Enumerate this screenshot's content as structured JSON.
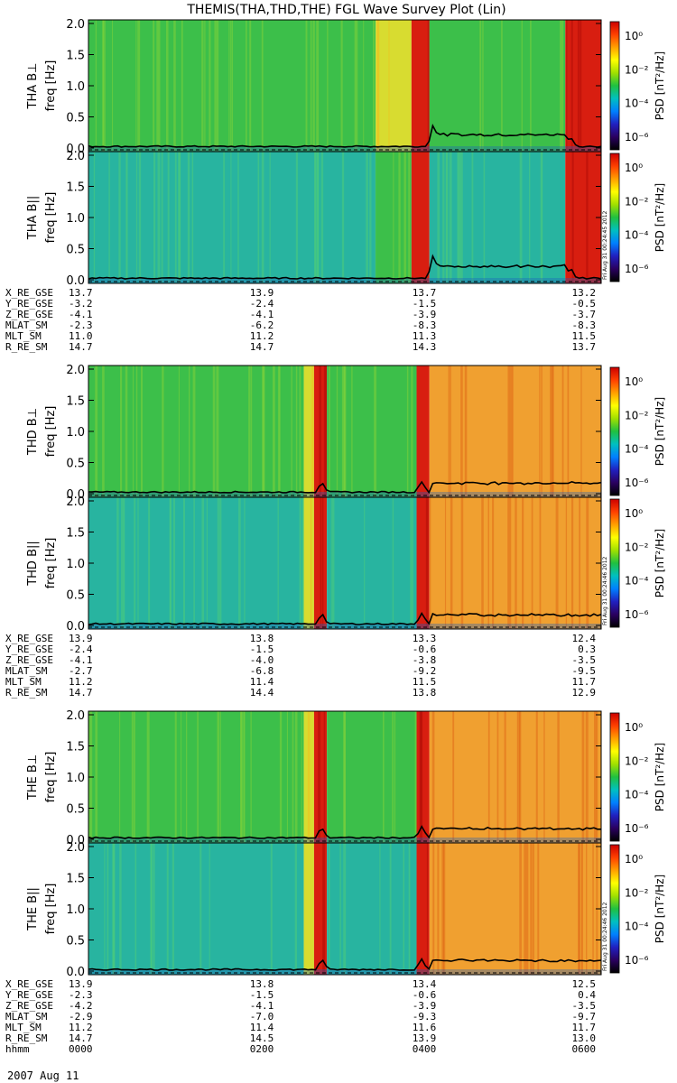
{
  "title": "THEMIS(THA,THD,THE) FGL Wave Survey Plot (Lin)",
  "colorbar": {
    "label": "PSD [nT²/Hz]",
    "ticks": [
      "10⁰",
      "10⁻²",
      "10⁻⁴",
      "10⁻⁶"
    ],
    "colors": [
      "#000000",
      "#2a0060",
      "#2020c0",
      "#0080ff",
      "#00c0c0",
      "#20c040",
      "#a0e000",
      "#ffff00",
      "#ffa000",
      "#ff4000",
      "#cc0000"
    ]
  },
  "chart_data": [
    {
      "type": "heatmap",
      "probe": "THA",
      "panels": [
        {
          "ylabel": "THA B⊥",
          "yunit": "freq [Hz]",
          "ylim": [
            0,
            2.0
          ],
          "yticks": [
            "0.0",
            "0.5",
            "1.0",
            "1.5",
            "2.0"
          ],
          "bands": [
            [
              0.0,
              0.56,
              "green"
            ],
            [
              0.56,
              0.63,
              "yellow"
            ],
            [
              0.63,
              0.665,
              "red"
            ],
            [
              0.665,
              0.93,
              "green"
            ],
            [
              0.93,
              1.0,
              "red"
            ]
          ],
          "peaks": [
            0.67,
            0.94
          ]
        },
        {
          "ylabel": "THA B||",
          "yunit": "freq [Hz]",
          "ylim": [
            0,
            2.0
          ],
          "yticks": [
            "0.0",
            "0.5",
            "1.0",
            "1.5",
            "2.0"
          ],
          "bands": [
            [
              0.0,
              0.56,
              "cyan"
            ],
            [
              0.56,
              0.63,
              "green"
            ],
            [
              0.63,
              0.665,
              "red"
            ],
            [
              0.665,
              0.93,
              "cyan"
            ],
            [
              0.93,
              1.0,
              "red"
            ]
          ],
          "peaks": [
            0.67,
            0.94
          ]
        }
      ],
      "ephemeris": [
        {
          "label": "X_RE_GSE",
          "values": [
            "13.7",
            "13.9",
            "13.7",
            "13.2"
          ]
        },
        {
          "label": "Y_RE_GSE",
          "values": [
            "-3.2",
            "-2.4",
            "-1.5",
            "-0.5"
          ]
        },
        {
          "label": "Z_RE_GSE",
          "values": [
            "-4.1",
            "-4.1",
            "-3.9",
            "-3.7"
          ]
        },
        {
          "label": "MLAT_SM",
          "values": [
            "-2.3",
            "-6.2",
            "-8.3",
            "-8.3"
          ]
        },
        {
          "label": "MLT_SM",
          "values": [
            "11.0",
            "11.2",
            "11.3",
            "11.5"
          ]
        },
        {
          "label": "R_RE_SM",
          "values": [
            "14.7",
            "14.7",
            "14.3",
            "13.7"
          ]
        }
      ],
      "stamp": "Fri Aug 31 00:24:45 2012"
    },
    {
      "type": "heatmap",
      "probe": "THD",
      "panels": [
        {
          "ylabel": "THD B⊥",
          "yunit": "freq [Hz]",
          "ylim": [
            0,
            2.0
          ],
          "yticks": [
            "0.0",
            "0.5",
            "1.0",
            "1.5",
            "2.0"
          ],
          "bands": [
            [
              0.0,
              0.42,
              "green"
            ],
            [
              0.42,
              0.44,
              "yellow"
            ],
            [
              0.44,
              0.465,
              "red"
            ],
            [
              0.465,
              0.64,
              "green"
            ],
            [
              0.64,
              0.665,
              "red"
            ],
            [
              0.665,
              1.0,
              "orange"
            ]
          ],
          "peaks": [
            0.455,
            0.65
          ]
        },
        {
          "ylabel": "THD B||",
          "yunit": "freq [Hz]",
          "ylim": [
            0,
            2.0
          ],
          "yticks": [
            "0.0",
            "0.5",
            "1.0",
            "1.5",
            "2.0"
          ],
          "bands": [
            [
              0.0,
              0.42,
              "cyan"
            ],
            [
              0.42,
              0.44,
              "yellow"
            ],
            [
              0.44,
              0.465,
              "red"
            ],
            [
              0.465,
              0.64,
              "cyan"
            ],
            [
              0.64,
              0.665,
              "red"
            ],
            [
              0.665,
              1.0,
              "orange"
            ]
          ],
          "peaks": [
            0.455,
            0.65
          ]
        }
      ],
      "ephemeris": [
        {
          "label": "X_RE_GSE",
          "values": [
            "13.9",
            "13.8",
            "13.3",
            "12.4"
          ]
        },
        {
          "label": "Y_RE_GSE",
          "values": [
            "-2.4",
            "-1.5",
            "-0.6",
            "0.3"
          ]
        },
        {
          "label": "Z_RE_GSE",
          "values": [
            "-4.1",
            "-4.0",
            "-3.8",
            "-3.5"
          ]
        },
        {
          "label": "MLAT_SM",
          "values": [
            "-2.7",
            "-6.8",
            "-9.2",
            "-9.5"
          ]
        },
        {
          "label": "MLT_SM",
          "values": [
            "11.2",
            "11.4",
            "11.5",
            "11.7"
          ]
        },
        {
          "label": "R_RE_SM",
          "values": [
            "14.7",
            "14.4",
            "13.8",
            "12.9"
          ]
        }
      ],
      "stamp": "Fri Aug 31 00:24:46 2012"
    },
    {
      "type": "heatmap",
      "probe": "THE",
      "panels": [
        {
          "ylabel": "THE B⊥",
          "yunit": "freq [Hz]",
          "ylim": [
            0,
            2.0
          ],
          "yticks": [
            "0.0",
            "0.5",
            "1.0",
            "1.5",
            "2.0"
          ],
          "bands": [
            [
              0.0,
              0.42,
              "green"
            ],
            [
              0.42,
              0.44,
              "yellow"
            ],
            [
              0.44,
              0.465,
              "red"
            ],
            [
              0.465,
              0.64,
              "green"
            ],
            [
              0.64,
              0.665,
              "red"
            ],
            [
              0.665,
              1.0,
              "orange"
            ]
          ],
          "peaks": [
            0.455,
            0.65
          ]
        },
        {
          "ylabel": "THE B||",
          "yunit": "freq [Hz]",
          "ylim": [
            0,
            2.0
          ],
          "yticks": [
            "0.0",
            "0.5",
            "1.0",
            "1.5",
            "2.0"
          ],
          "bands": [
            [
              0.0,
              0.42,
              "cyan"
            ],
            [
              0.42,
              0.44,
              "yellow"
            ],
            [
              0.44,
              0.465,
              "red"
            ],
            [
              0.465,
              0.64,
              "cyan"
            ],
            [
              0.64,
              0.665,
              "red"
            ],
            [
              0.665,
              1.0,
              "orange"
            ]
          ],
          "peaks": [
            0.455,
            0.65
          ]
        }
      ],
      "ephemeris": [
        {
          "label": "X_RE_GSE",
          "values": [
            "13.9",
            "13.8",
            "13.4",
            "12.5"
          ]
        },
        {
          "label": "Y_RE_GSE",
          "values": [
            "-2.3",
            "-1.5",
            "-0.6",
            "0.4"
          ]
        },
        {
          "label": "Z_RE_GSE",
          "values": [
            "-4.2",
            "-4.1",
            "-3.9",
            "-3.5"
          ]
        },
        {
          "label": "MLAT_SM",
          "values": [
            "-2.9",
            "-7.0",
            "-9.3",
            "-9.7"
          ]
        },
        {
          "label": "MLT_SM",
          "values": [
            "11.2",
            "11.4",
            "11.6",
            "11.7"
          ]
        },
        {
          "label": "R_RE_SM",
          "values": [
            "14.7",
            "14.5",
            "13.9",
            "13.0"
          ]
        },
        {
          "label": "hhmm",
          "values": [
            "0000",
            "0200",
            "0400",
            "0600"
          ]
        }
      ],
      "stamp": "Fri Aug 31 00:24:46 2012"
    }
  ],
  "date_label": "2007 Aug 11"
}
